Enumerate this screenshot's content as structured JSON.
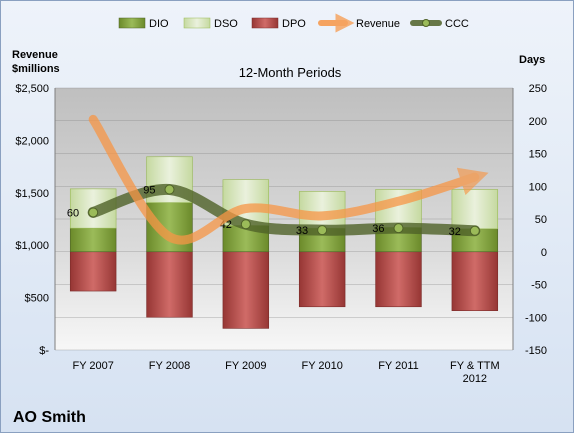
{
  "chart_data": {
    "type": "bar",
    "title": "12-Month Periods",
    "company": "AO Smith",
    "categories": [
      [
        "FY 2007"
      ],
      [
        "FY 2008"
      ],
      [
        "FY 2009"
      ],
      [
        "FY 2010"
      ],
      [
        "FY 2011"
      ],
      [
        "FY & TTM",
        "2012"
      ]
    ],
    "left_axis": {
      "label_lines": [
        "Revenue",
        "$millions"
      ],
      "ticks": [
        "$-",
        "$500",
        "$1,000",
        "$1,500",
        "$2,000",
        "$2,500"
      ],
      "range": [
        0,
        2500
      ]
    },
    "right_axis": {
      "label": "Days",
      "ticks": [
        "-150",
        "-100",
        "-50",
        "0",
        "50",
        "100",
        "150",
        "200",
        "250"
      ],
      "range": [
        -150,
        250
      ]
    },
    "series": [
      {
        "name": "DIO",
        "kind": "bar",
        "color": "#77933c",
        "values": [
          36,
          75,
          40,
          36,
          37,
          35
        ]
      },
      {
        "name": "DSO",
        "kind": "bar",
        "color": "#d7e4bd",
        "values": [
          60,
          70,
          70,
          56,
          58,
          60
        ]
      },
      {
        "name": "DPO",
        "kind": "bar",
        "color": "#c0504d",
        "values": [
          -60,
          -100,
          -117,
          -84,
          -84,
          -90
        ]
      },
      {
        "name": "Revenue",
        "kind": "line",
        "color": "#f79646",
        "values": [
          2200,
          1080,
          1350,
          1280,
          1420,
          1650
        ]
      },
      {
        "name": "CCC",
        "kind": "line",
        "color": "#4f6228",
        "values": [
          60,
          95,
          42,
          33,
          36,
          32
        ],
        "labels": [
          "60",
          "95",
          "42",
          "33",
          "36",
          "32"
        ]
      }
    ]
  }
}
